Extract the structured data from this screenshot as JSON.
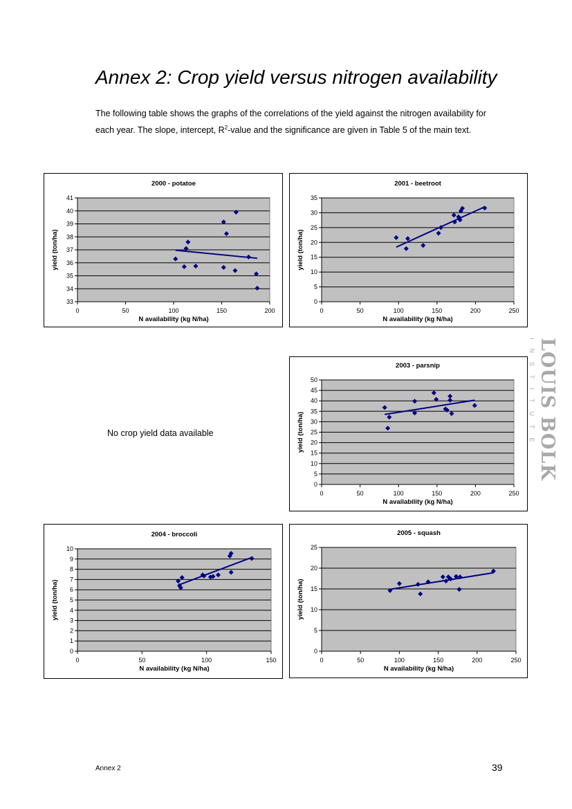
{
  "page": {
    "title": "Annex 2: Crop yield versus nitrogen availability",
    "intro_before_sup": "The following table shows the graphs of the correlations of the yield against the nitrogen availability for each year. The slope, intercept, R",
    "intro_sup": "2",
    "intro_after_sup": "-value and the significance are given in Table 5 of the main text.",
    "no_data_text": "No crop yield data available",
    "footer_left": "Annex 2",
    "page_number": "39",
    "logo_main": "LOUIS BOLK",
    "logo_sub": "INSTITUTE"
  },
  "colors": {
    "plot_bg": "#c0c0c0",
    "marker": "#000080",
    "trendline": "#000080",
    "gridline": "#000000",
    "logo": "#a9a9a9"
  },
  "chart_data": [
    {
      "type": "scatter",
      "title": "2000 - potatoe",
      "xlabel": "N availability (kg N/ha)",
      "ylabel": "yield (ton/ha)",
      "xlim": [
        0,
        200
      ],
      "ylim": [
        33,
        41
      ],
      "xticks": [
        0,
        50,
        100,
        150,
        200
      ],
      "yticks": [
        33,
        34,
        35,
        36,
        37,
        38,
        39,
        40,
        41
      ],
      "grid": "horizontal",
      "points": [
        [
          102,
          36.3
        ],
        [
          111,
          35.7
        ],
        [
          113,
          37.1
        ],
        [
          115,
          37.6
        ],
        [
          123,
          35.75
        ],
        [
          152,
          35.65
        ],
        [
          152,
          39.15
        ],
        [
          155,
          38.25
        ],
        [
          164,
          35.4
        ],
        [
          165,
          39.9
        ],
        [
          178,
          36.45
        ],
        [
          186,
          35.15
        ],
        [
          187,
          34.05
        ]
      ],
      "trendline": [
        [
          102,
          36.97
        ],
        [
          187,
          36.35
        ]
      ]
    },
    {
      "type": "scatter",
      "title": "2001 - beetroot",
      "xlabel": "N availability (kg N/ha)",
      "ylabel": "yield (ton/ha)",
      "xlim": [
        0,
        250
      ],
      "ylim": [
        0,
        35
      ],
      "xticks": [
        0,
        50,
        100,
        150,
        200,
        250
      ],
      "yticks": [
        0,
        5,
        10,
        15,
        20,
        25,
        30,
        35
      ],
      "grid": "horizontal",
      "points": [
        [
          97,
          21.6
        ],
        [
          110,
          17.9
        ],
        [
          112,
          21.3
        ],
        [
          132,
          19.0
        ],
        [
          152,
          23.1
        ],
        [
          155,
          25.0
        ],
        [
          172,
          29.2
        ],
        [
          173,
          26.9
        ],
        [
          178,
          28.6
        ],
        [
          180,
          27.6
        ],
        [
          181,
          30.6
        ],
        [
          183,
          31.5
        ],
        [
          212,
          31.6
        ]
      ],
      "trendline": [
        [
          97,
          18.4
        ],
        [
          212,
          32.0
        ]
      ]
    },
    {
      "type": "scatter",
      "title": "2003 - parsnip",
      "xlabel": "N availability (kg N/ha)",
      "ylabel": "yield (ton/ha)",
      "xlim": [
        0,
        250
      ],
      "ylim": [
        0,
        50
      ],
      "xticks": [
        0,
        50,
        100,
        150,
        200,
        250
      ],
      "yticks": [
        0,
        5,
        10,
        15,
        20,
        25,
        30,
        35,
        40,
        45,
        50
      ],
      "grid": "horizontal",
      "points": [
        [
          82,
          36.8
        ],
        [
          86,
          26.9
        ],
        [
          88,
          32.2
        ],
        [
          121,
          39.8
        ],
        [
          121,
          34.2
        ],
        [
          146,
          43.8
        ],
        [
          149,
          40.7
        ],
        [
          161,
          36.1
        ],
        [
          163,
          35.6
        ],
        [
          167,
          42.2
        ],
        [
          167,
          40.3
        ],
        [
          169,
          33.9
        ],
        [
          199,
          37.8
        ]
      ],
      "trendline": [
        [
          82,
          33.5
        ],
        [
          199,
          40.3
        ]
      ]
    },
    {
      "type": "scatter",
      "title": "2004 - broccoli",
      "xlabel": "N availability (kg N/ha)",
      "ylabel": "yield (ton/ha)",
      "xlim": [
        0,
        150
      ],
      "ylim": [
        0,
        10
      ],
      "xticks": [
        0,
        50,
        100,
        150
      ],
      "yticks": [
        0,
        1,
        2,
        3,
        4,
        5,
        6,
        7,
        8,
        9,
        10
      ],
      "grid": "horizontal",
      "points": [
        [
          78,
          6.85
        ],
        [
          79,
          6.4
        ],
        [
          80,
          6.2
        ],
        [
          81,
          7.2
        ],
        [
          97,
          7.45
        ],
        [
          98,
          7.35
        ],
        [
          103,
          7.25
        ],
        [
          105,
          7.3
        ],
        [
          109,
          7.45
        ],
        [
          118,
          9.3
        ],
        [
          119,
          9.55
        ],
        [
          119,
          7.7
        ],
        [
          135,
          9.05
        ]
      ],
      "trendline": [
        [
          78,
          6.45
        ],
        [
          135,
          9.15
        ]
      ]
    },
    {
      "type": "scatter",
      "title": "2005 - squash",
      "xlabel": "N availability (kg N/ha)",
      "ylabel": "yield (ton/ha)",
      "xlim": [
        0,
        250
      ],
      "ylim": [
        0,
        25
      ],
      "xticks": [
        0,
        50,
        100,
        150,
        200,
        250
      ],
      "yticks": [
        0,
        5,
        10,
        15,
        20,
        25
      ],
      "grid": "horizontal",
      "points": [
        [
          88,
          14.6
        ],
        [
          100,
          16.3
        ],
        [
          124,
          16.1
        ],
        [
          127,
          13.8
        ],
        [
          137,
          16.7
        ],
        [
          156,
          17.9
        ],
        [
          160,
          16.9
        ],
        [
          163,
          17.9
        ],
        [
          166,
          17.4
        ],
        [
          173,
          18.0
        ],
        [
          177,
          14.9
        ],
        [
          178,
          17.9
        ],
        [
          221,
          19.3
        ]
      ],
      "trendline": [
        [
          88,
          14.9
        ],
        [
          221,
          18.9
        ]
      ]
    }
  ]
}
